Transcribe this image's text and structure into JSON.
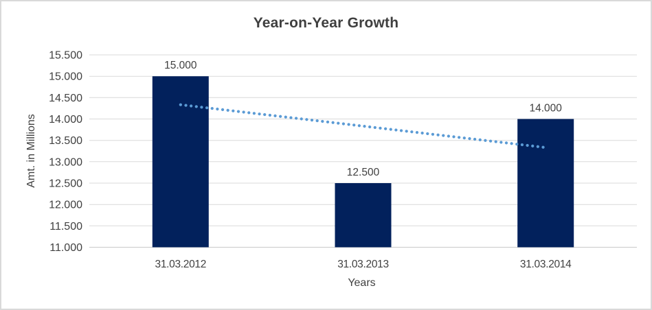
{
  "window": {
    "background": "#ffffff",
    "frame_border_color": "#d9d9d9"
  },
  "chart_data": {
    "type": "bar",
    "title": "Year-on-Year Growth",
    "categories": [
      "31.03.2012",
      "31.03.2013",
      "31.03.2014"
    ],
    "values": [
      15.0,
      12.5,
      14.0
    ],
    "value_labels": [
      "15.000",
      "12.500",
      "14.000"
    ],
    "xlabel": "Years",
    "ylabel": "Amt. in Millions",
    "ylim": [
      11.0,
      15.5
    ],
    "ytick_step": 0.5,
    "ytick_labels": [
      "11.000",
      "11.500",
      "12.000",
      "12.500",
      "13.000",
      "13.500",
      "14.000",
      "14.500",
      "15.000",
      "15.500"
    ],
    "grid": true,
    "legend": "none",
    "bar_color": "#02215c",
    "gridline_color": "#d9d9d9",
    "axis_line_color": "#c9c9c9",
    "text_color": "#404040",
    "title_color": "#3f3f3f",
    "trendline": {
      "type": "linear",
      "style": "dotted",
      "color": "#5b9bd5",
      "points": [
        14.333,
        13.833,
        13.333
      ]
    }
  }
}
